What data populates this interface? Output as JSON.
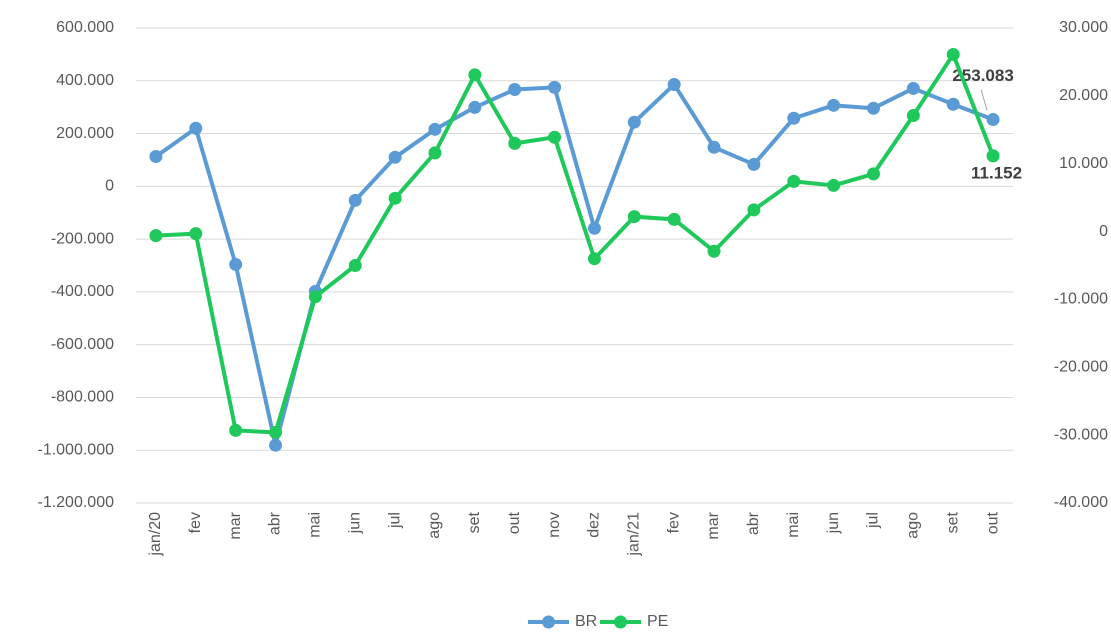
{
  "chart_data": {
    "type": "line",
    "categories": [
      "jan/20",
      "fev",
      "mar",
      "abr",
      "mai",
      "jun",
      "jul",
      "ago",
      "set",
      "out",
      "nov",
      "dez",
      "jan/21",
      "fev",
      "mar",
      "abr",
      "mai",
      "jun",
      "jul",
      "ago",
      "set",
      "out"
    ],
    "series": [
      {
        "name": "BR",
        "color": "#5b9bd5",
        "values": [
          113000,
          220000,
          -296000,
          -981000,
          -398000,
          -53000,
          110000,
          216000,
          299000,
          367000,
          375000,
          -159000,
          243000,
          386000,
          148000,
          83000,
          258000,
          307000,
          296000,
          371000,
          311000,
          253083
        ],
        "value_labels": [
          null,
          null,
          null,
          null,
          null,
          null,
          null,
          null,
          null,
          null,
          null,
          null,
          null,
          null,
          null,
          null,
          null,
          null,
          null,
          null,
          null,
          "253.083"
        ]
      },
      {
        "name": "PE",
        "color": "#1ec85a",
        "axis": "y2",
        "values": [
          -600,
          -300,
          -29300,
          -29600,
          -9600,
          -5000,
          4900,
          11600,
          23100,
          13000,
          13900,
          -4000,
          2200,
          1800,
          -2900,
          3200,
          7400,
          6800,
          8500,
          17100,
          26100,
          11152
        ],
        "value_labels": [
          null,
          null,
          null,
          null,
          null,
          null,
          null,
          null,
          null,
          null,
          null,
          null,
          null,
          null,
          null,
          null,
          null,
          null,
          null,
          null,
          null,
          "11.152"
        ]
      }
    ],
    "ylim": [
      -1200000,
      600000
    ],
    "yticks": [
      {
        "value": -1200000,
        "label": "-1.200.000"
      },
      {
        "value": -1000000,
        "label": "-1.000.000"
      },
      {
        "value": -800000,
        "label": "-800.000"
      },
      {
        "value": -600000,
        "label": "-600.000"
      },
      {
        "value": -400000,
        "label": "-400.000"
      },
      {
        "value": -200000,
        "label": "-200.000"
      },
      0,
      {
        "value": 200000,
        "label": "200.000"
      },
      {
        "value": 400000,
        "label": "400.000"
      },
      {
        "value": 600000,
        "label": "600.000"
      }
    ],
    "y2lim": [
      -40000,
      30000
    ],
    "y2ticks": [
      {
        "value": -40000,
        "label": "-40.000"
      },
      {
        "value": -30000,
        "label": "-30.000"
      },
      {
        "value": -20000,
        "label": "-20.000"
      },
      {
        "value": -10000,
        "label": "-10.000"
      },
      0,
      {
        "value": 10000,
        "label": "10.000"
      },
      {
        "value": 20000,
        "label": "20.000"
      },
      {
        "value": 30000,
        "label": "30.000"
      }
    ],
    "grid": true,
    "legend": "bottom"
  }
}
